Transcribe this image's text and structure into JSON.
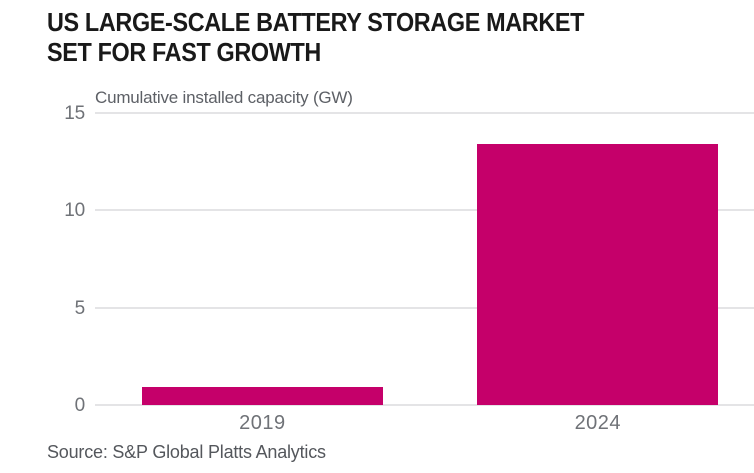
{
  "header": {
    "title_line1": "US LARGE-SCALE BATTERY STORAGE MARKET",
    "title_line2": "SET FOR FAST GROWTH"
  },
  "chart_data": {
    "type": "bar",
    "title": "US LARGE-SCALE BATTERY STORAGE MARKET SET FOR FAST GROWTH",
    "subtitle": "Cumulative installed capacity (GW)",
    "xlabel": "",
    "ylabel": "Cumulative installed capacity (GW)",
    "categories": [
      "2019",
      "2024"
    ],
    "values": [
      0.9,
      13.4
    ],
    "ylim": [
      0,
      15
    ],
    "yticks": [
      0,
      5,
      10,
      15
    ],
    "grid": true,
    "legend": false,
    "bar_color": "#c5006a"
  },
  "footer": {
    "source": "Source: S&P Global Platts Analytics"
  },
  "colors": {
    "background": "#ffffff",
    "bar": "#c5006a",
    "title_text": "#191919",
    "subtitle_text": "#5d6066",
    "axis_text": "#6f7277",
    "gridline": "#e4e4e6",
    "source_text": "#54575c"
  }
}
